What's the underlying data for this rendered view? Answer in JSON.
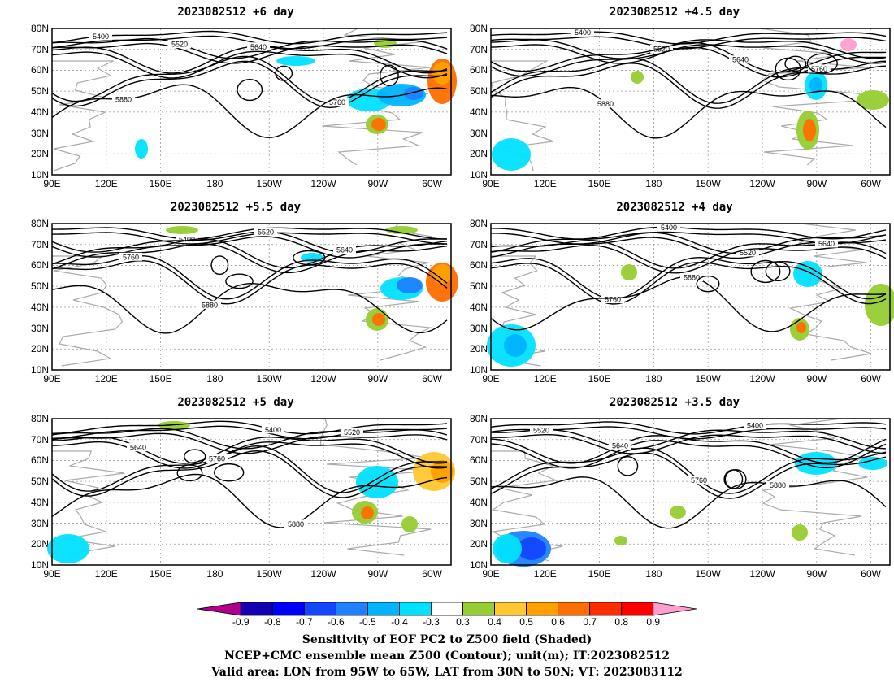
{
  "panels": [
    {
      "title": "2023082512  +6 day"
    },
    {
      "title": "2023082512  +4.5 day"
    },
    {
      "title": "2023082512  +5.5 day"
    },
    {
      "title": "2023082512  +4 day"
    },
    {
      "title": "2023082512  +5 day"
    },
    {
      "title": "2023082512  +3.5 day"
    }
  ],
  "axes": {
    "lat_labels": [
      "80N",
      "70N",
      "60N",
      "50N",
      "40N",
      "30N",
      "20N",
      "10N"
    ],
    "lon_labels": [
      "90E",
      "120E",
      "150E",
      "180",
      "150W",
      "120W",
      "90W",
      "60W"
    ]
  },
  "contour_labels": [
    "5400",
    "5520",
    "5640",
    "5760",
    "5880"
  ],
  "colorbar": {
    "labels": [
      "-0.9",
      "-0.8",
      "-0.7",
      "-0.6",
      "-0.5",
      "-0.4",
      "-0.3",
      "0.3",
      "0.4",
      "0.5",
      "0.6",
      "0.7",
      "0.8",
      "0.9"
    ],
    "colors": [
      "#b0008a",
      "#1400b4",
      "#0000ff",
      "#1446ff",
      "#1e82ff",
      "#00b4ff",
      "#00e1ff",
      "#ffffff",
      "#96cd32",
      "#ffc832",
      "#ffa000",
      "#ff6e00",
      "#ff2d00",
      "#ff0000",
      "#ff9fd0"
    ]
  },
  "footer": {
    "line1": "Sensitivity of EOF PC2 to Z500 field (Shaded)",
    "line2": "NCEP+CMC ensemble mean Z500 (Contour); unit(m); IT:2023082512",
    "line3": "Valid area: LON from 95W to 65W, LAT from 30N to 50N; VT: 2023083112"
  }
}
